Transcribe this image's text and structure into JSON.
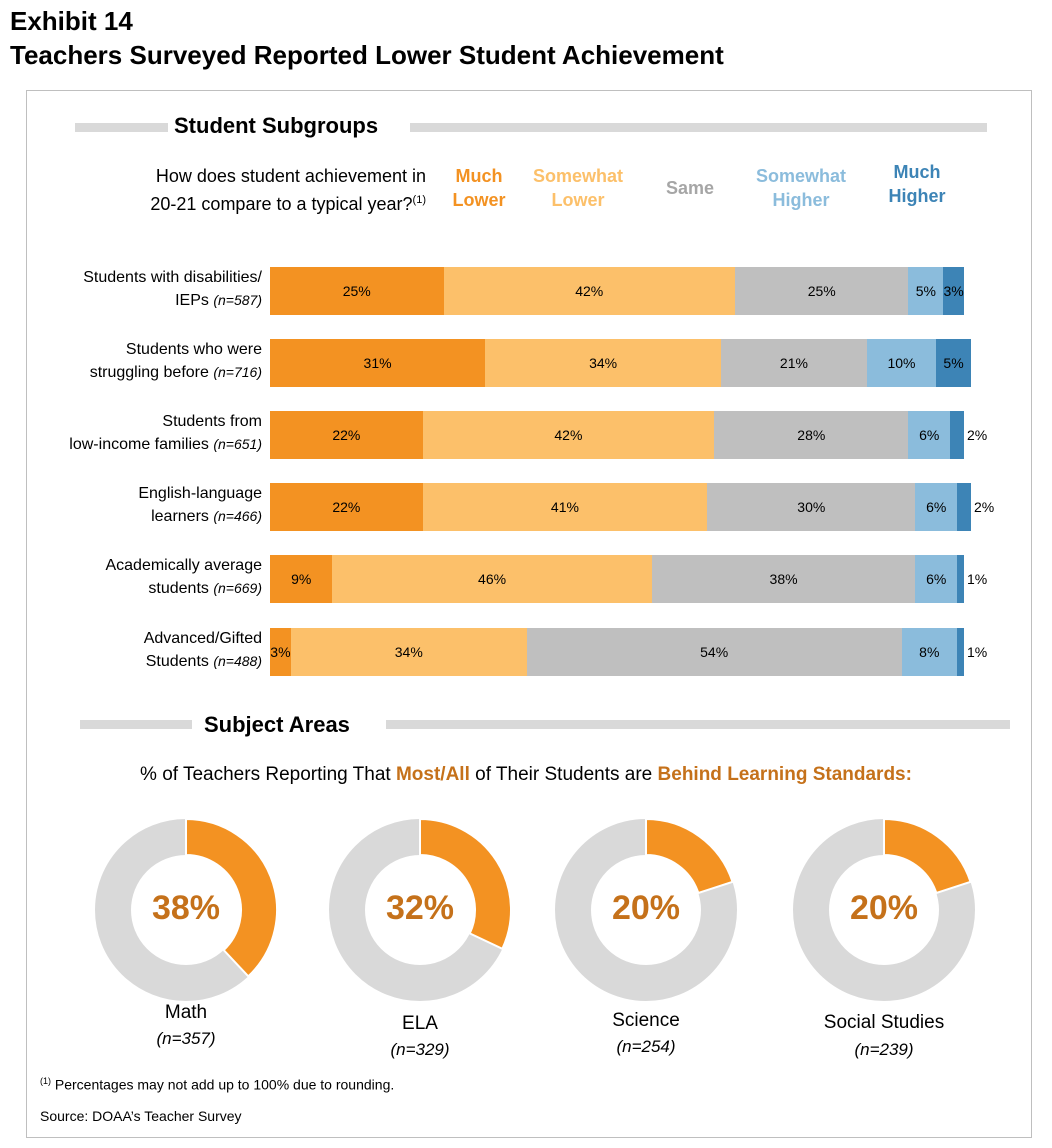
{
  "header": {
    "exhibit": "Exhibit 14",
    "title": "Teachers Surveyed Reported Lower Student Achievement"
  },
  "subgroups": {
    "heading": "Student Subgroups",
    "question_line1": "How does student achievement in",
    "question_line2": "20-21 compare to a typical year?",
    "question_footnote_mark": "(1)"
  },
  "legend": [
    {
      "line1": "Much",
      "line2": "Lower",
      "color": "#f39222"
    },
    {
      "line1": "Somewhat",
      "line2": "Lower",
      "color": "#fcc06a"
    },
    {
      "line1": "Same",
      "line2": "",
      "color": "#a6a6a6"
    },
    {
      "line1": "Somewhat",
      "line2": "Higher",
      "color": "#8bbcdc"
    },
    {
      "line1": "Much",
      "line2": "Higher",
      "color": "#3d84b6"
    }
  ],
  "subjects": {
    "heading": "Subject Areas",
    "question_part1": "% of Teachers Reporting That ",
    "question_hl1": "Most/All",
    "question_part2": " of Their Students are ",
    "question_hl2": "Behind Learning Standards:",
    "accent_color": "#c5711a"
  },
  "chart_data": [
    {
      "type": "bar",
      "orientation": "horizontal",
      "stacked": true,
      "title": "Student Subgroups",
      "categories": [
        {
          "line1": "Students with disabilities/",
          "line2": "IEPs",
          "n": "(n=587)"
        },
        {
          "line1": "Students who were",
          "line2": "struggling before",
          "n": "(n=716)"
        },
        {
          "line1": "Students from",
          "line2": "low-income families",
          "n": "(n=651)"
        },
        {
          "line1": "English-language",
          "line2": "learners",
          "n": "(n=466)"
        },
        {
          "line1": "Academically average",
          "line2": "students",
          "n": "(n=669)"
        },
        {
          "line1": "Advanced/Gifted",
          "line2": "Students",
          "n": "(n=488)"
        }
      ],
      "series": [
        {
          "name": "Much Lower",
          "color": "#f39222",
          "values": [
            25,
            31,
            22,
            22,
            9,
            3
          ]
        },
        {
          "name": "Somewhat Lower",
          "color": "#fcc06a",
          "values": [
            42,
            34,
            42,
            41,
            46,
            34
          ]
        },
        {
          "name": "Same",
          "color": "#bfbfbf",
          "values": [
            25,
            21,
            28,
            30,
            38,
            54
          ]
        },
        {
          "name": "Somewhat Higher",
          "color": "#8bbcdc",
          "values": [
            5,
            10,
            6,
            6,
            6,
            8
          ]
        },
        {
          "name": "Much Higher",
          "color": "#3d84b6",
          "values": [
            3,
            5,
            2,
            2,
            1,
            1
          ]
        }
      ],
      "unit": "%"
    },
    {
      "type": "pie",
      "donut": true,
      "items": [
        {
          "label": "Math",
          "n": "(n=357)",
          "value": 38
        },
        {
          "label": "ELA",
          "n": "(n=329)",
          "value": 32
        },
        {
          "label": "Science",
          "n": "(n=254)",
          "value": 20
        },
        {
          "label": "Social Studies",
          "n": "(n=239)",
          "value": 20
        }
      ],
      "highlight_color": "#f39222",
      "rest_color": "#d9d9d9",
      "unit": "%"
    }
  ],
  "footer": {
    "footnote_mark": "(1)",
    "footnote": " Percentages may not add up to 100% due to rounding.",
    "source": "Source: DOAA’s Teacher Survey"
  }
}
